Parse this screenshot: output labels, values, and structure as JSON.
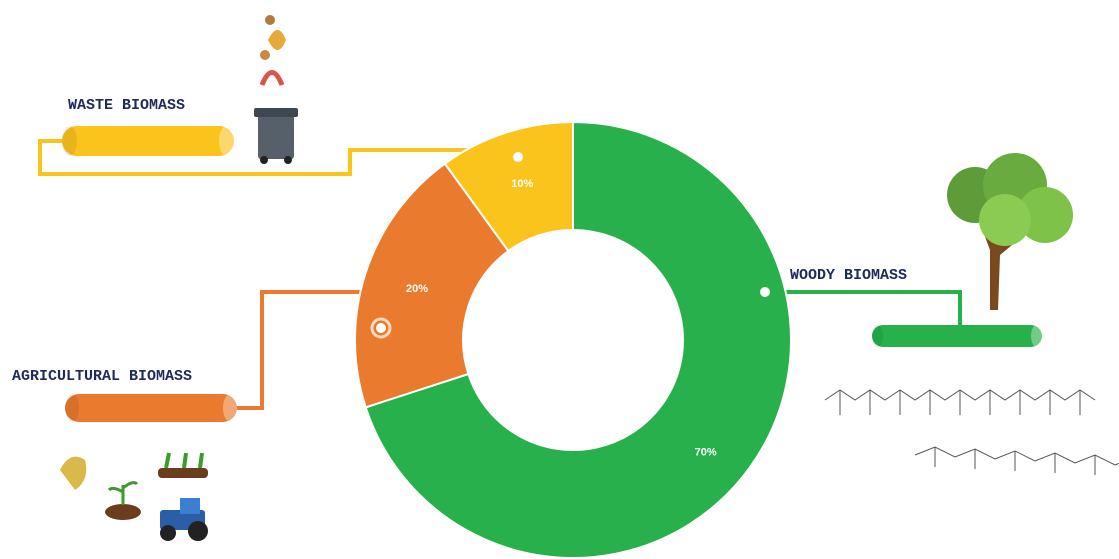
{
  "chart_data": {
    "type": "donut",
    "categories": [
      "WOODY BIOMASS",
      "AGRICULTURAL BIOMASS",
      "WASTE BIOMASS"
    ],
    "values": [
      70,
      20,
      10
    ],
    "value_labels": [
      "70%",
      "20%",
      "10%"
    ],
    "colors": [
      "#27b04b",
      "#ea7a2d",
      "#fbc41c"
    ]
  }
}
